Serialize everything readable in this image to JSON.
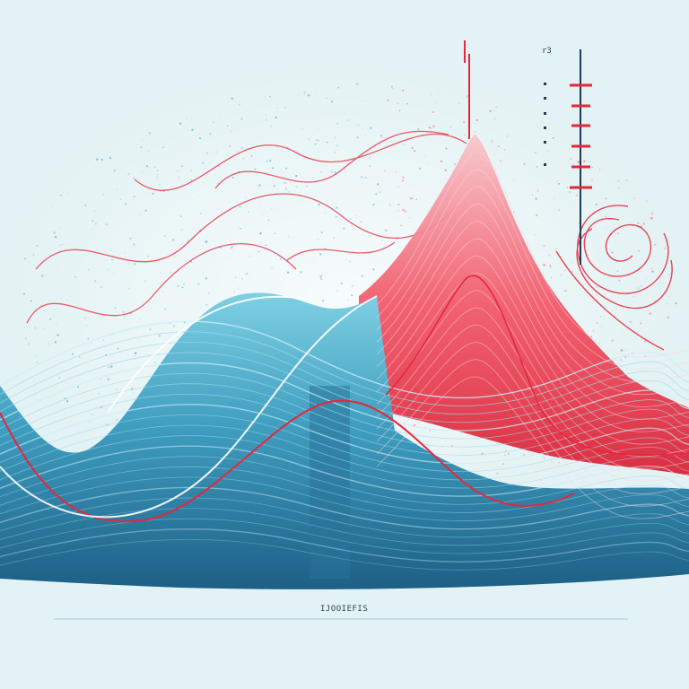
{
  "artwork": {
    "caption": "IJOOIEFIS",
    "gauge_label": "r3",
    "colors": {
      "background": "#e3f2f4",
      "blue_dark": "#1e5f86",
      "blue_mid": "#3f9ec0",
      "blue_light": "#8fd3e2",
      "red": "#e8263a",
      "red_light": "#f7a5ad",
      "white": "#ffffff"
    }
  }
}
